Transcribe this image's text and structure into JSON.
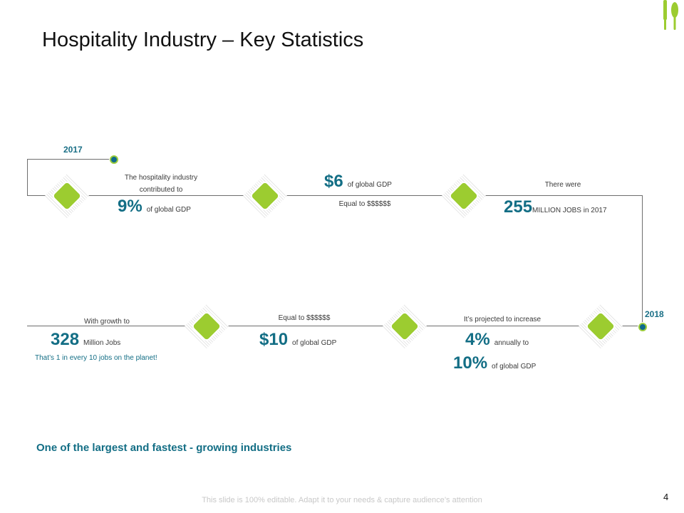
{
  "title": "Hospitality Industry – Key Statistics",
  "years": {
    "start": "2017",
    "end": "2018"
  },
  "top_row": {
    "item1": {
      "caption_line1": "The hospitality industry",
      "caption_line2": "contributed to",
      "value": "9%",
      "unit": "of global GDP"
    },
    "item2": {
      "value": "$6",
      "unit": "of global GDP",
      "sub": "Equal to $$$$$$"
    },
    "item3": {
      "caption": "There were",
      "value": "255",
      "unit": "MILLION JOBS in 2017"
    }
  },
  "bottom_row": {
    "item1": {
      "caption": "It’s projected to increase",
      "value": "4%",
      "unit": "annually to",
      "value2": "10%",
      "unit2": "of global GDP"
    },
    "item2": {
      "caption": "Equal to $$$$$$",
      "value": "$10",
      "unit": "of global GDP"
    },
    "item3": {
      "caption": "With growth to",
      "value": "328",
      "unit": "Million Jobs",
      "note": "That’s 1 in every 10 jobs on the planet!"
    }
  },
  "tagline": "One of the largest and fastest - growing industries",
  "footer": "This slide is 100% editable. Adapt it to your needs & capture audience’s attention",
  "page_number": "4",
  "colors": {
    "accent_green": "#9ccc30",
    "accent_teal": "#136e85"
  }
}
